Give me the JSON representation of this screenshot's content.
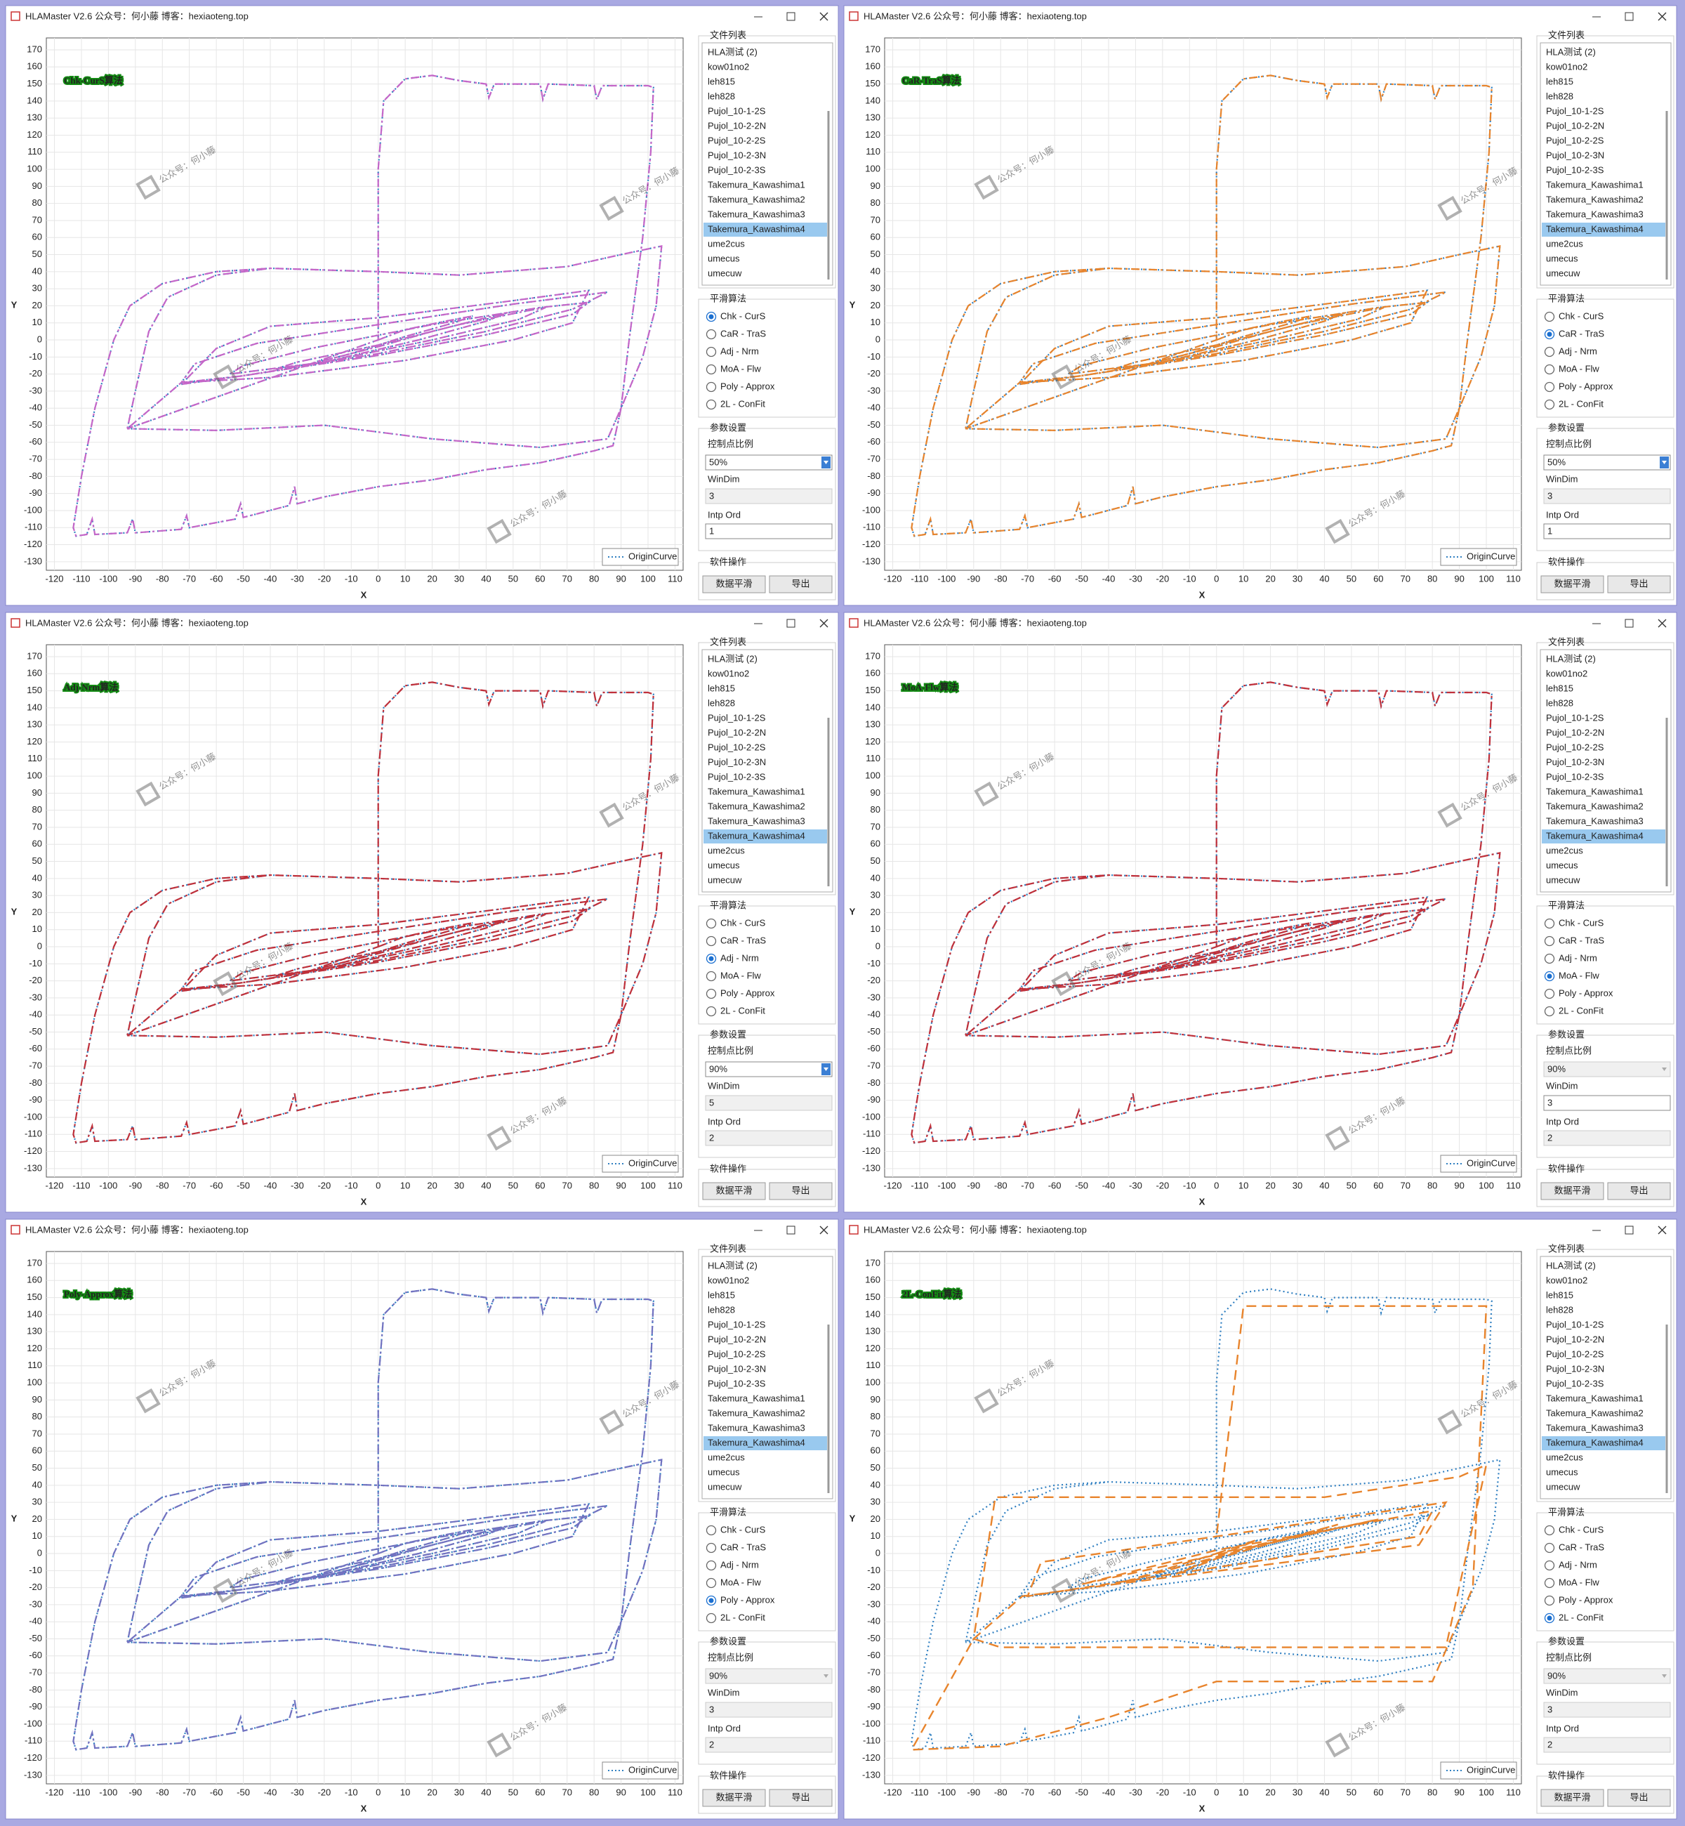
{
  "window_title": "HLAMaster V2.6 公众号：何小藤 博客：hexiaoteng.top",
  "watermark": "公众号：何小藤",
  "axes": {
    "x_label": "X",
    "y_label": "Y",
    "legend": "OriginCurve",
    "xlim": [
      -123,
      113
    ],
    "ylim": [
      -135,
      177
    ],
    "xticks": [
      -120,
      -110,
      -100,
      -90,
      -80,
      -70,
      -60,
      -50,
      -40,
      -30,
      -20,
      -10,
      0,
      10,
      20,
      30,
      40,
      50,
      60,
      70,
      80,
      90,
      100,
      110
    ],
    "yticks": [
      -130,
      -120,
      -110,
      -100,
      -90,
      -80,
      -70,
      -60,
      -50,
      -40,
      -30,
      -20,
      -10,
      0,
      10,
      20,
      30,
      40,
      50,
      60,
      70,
      80,
      90,
      100,
      110,
      120,
      130,
      140,
      150,
      160,
      170
    ],
    "grid": true
  },
  "origin_curve": {
    "color": "#2f7fc1",
    "x": [
      0,
      10,
      25,
      35,
      28,
      10,
      -10,
      -25,
      -15,
      0,
      20,
      40,
      48,
      40,
      15,
      -20,
      -38,
      -30,
      0,
      30,
      55,
      62,
      52,
      20,
      -20,
      -55,
      -50,
      -25,
      20,
      60,
      78,
      72,
      40,
      0,
      -50,
      -73,
      -68,
      -45,
      0,
      50,
      85,
      72,
      40,
      0,
      -50,
      -73,
      -60,
      -40,
      0,
      50,
      78,
      72,
      50,
      10,
      -40,
      -73,
      -93,
      -90,
      -85,
      -78,
      -60,
      -40,
      0,
      30,
      70,
      90,
      105,
      103,
      98,
      90,
      85,
      60,
      20,
      -20,
      -60,
      -93,
      0,
      0,
      2,
      10,
      20,
      30,
      40,
      41,
      43,
      60,
      61,
      63,
      80,
      81,
      83,
      100,
      102,
      101,
      98,
      93,
      90,
      87,
      80,
      60,
      40,
      20,
      0,
      -20,
      -30,
      -31,
      -33,
      -50,
      -51,
      -53,
      -70,
      -71,
      -73,
      -90,
      -91,
      -93,
      -105,
      -106,
      -108,
      -112,
      -113,
      -110,
      -105,
      -98,
      -92,
      -80,
      -60,
      -40
    ],
    "y": [
      0,
      6,
      11,
      14,
      10,
      2,
      -8,
      -14,
      -10,
      -4,
      5,
      13,
      16,
      11,
      0,
      -13,
      -17,
      -13,
      -3,
      9,
      17,
      19,
      12,
      0,
      -13,
      -20,
      -15,
      -5,
      9,
      19,
      22,
      15,
      3,
      -9,
      -21,
      -25,
      -14,
      -2,
      9,
      21,
      28,
      18,
      5,
      -8,
      -21,
      -26,
      -5,
      8,
      13,
      23,
      29,
      10,
      0,
      -12,
      -22,
      -25,
      -52,
      -30,
      5,
      25,
      38,
      42,
      40,
      38,
      43,
      50,
      55,
      20,
      -10,
      -40,
      -58,
      -63,
      -58,
      -50,
      -53,
      -52,
      0,
      100,
      140,
      153,
      155,
      152,
      150,
      142,
      150,
      150,
      141,
      150,
      149,
      141,
      149,
      149,
      148,
      110,
      60,
      0,
      -40,
      -62,
      -65,
      -72,
      -76,
      -82,
      -86,
      -92,
      -96,
      -86,
      -97,
      -104,
      -96,
      -105,
      -110,
      -103,
      -111,
      -113,
      -105,
      -113,
      -114,
      -105,
      -114,
      -115,
      -110,
      -80,
      -40,
      0,
      20,
      33,
      40,
      42
    ]
  },
  "panel": {
    "file_list_label": "文件列表",
    "files": [
      "HLA测试 (2)",
      "kow01no2",
      "leh815",
      "leh828",
      "Pujol_10-1-2S",
      "Pujol_10-2-2N",
      "Pujol_10-2-2S",
      "Pujol_10-2-3N",
      "Pujol_10-2-3S",
      "Takemura_Kawashima1",
      "Takemura_Kawashima2",
      "Takemura_Kawashima3",
      "Takemura_Kawashima4",
      "ume2cus",
      "umecus",
      "umecuw"
    ],
    "selected_file": 12,
    "algo_label": "平滑算法",
    "algorithms": [
      "Chk - CurS",
      "CaR - TraS",
      "Adj - Nrm",
      "MoA - Flw",
      "Poly - Approx",
      "2L - ConFit"
    ],
    "params_label": "参数设置",
    "ratio_label": "控制点比例",
    "windim_label": "WinDim",
    "intp_label": "Intp Ord",
    "ops_label": "软件操作",
    "smooth_button": "数据平滑",
    "export_button": "导出"
  },
  "windows": [
    {
      "overlay": "Chk-CurS算法",
      "algorithm": 0,
      "color": "#c566c8",
      "ratio": "50%",
      "ratio_enabled": true,
      "windim": "3",
      "windim_enabled": false,
      "intp": "1",
      "intp_enabled": true
    },
    {
      "overlay": "CaR-TraS算法",
      "algorithm": 1,
      "color": "#e8842c",
      "ratio": "50%",
      "ratio_enabled": true,
      "windim": "3",
      "windim_enabled": false,
      "intp": "1",
      "intp_enabled": true
    },
    {
      "overlay": "Adj-Nrm算法",
      "algorithm": 2,
      "color": "#c0303a",
      "ratio": "90%",
      "ratio_enabled": true,
      "windim": "5",
      "windim_enabled": false,
      "intp": "2",
      "intp_enabled": false
    },
    {
      "overlay": "MoA-Flw算法",
      "algorithm": 3,
      "color": "#c0303a",
      "ratio": "90%",
      "ratio_enabled": false,
      "windim": "3",
      "windim_enabled": true,
      "intp": "2",
      "intp_enabled": false
    },
    {
      "overlay": "Poly-Approx算法",
      "algorithm": 4,
      "color": "#7272c0",
      "ratio": "90%",
      "ratio_enabled": false,
      "windim": "3",
      "windim_enabled": false,
      "intp": "2",
      "intp_enabled": false
    },
    {
      "overlay": "2L-ConFit算法",
      "algorithm": 5,
      "color": "#e8842c",
      "ratio": "90%",
      "ratio_enabled": false,
      "windim": "3",
      "windim_enabled": false,
      "intp": "2",
      "intp_enabled": false,
      "fit_curve": {
        "x": [
          0,
          15,
          -15,
          0,
          45,
          -35,
          0,
          60,
          -50,
          0,
          80,
          75,
          -70,
          -65,
          0,
          85,
          75,
          -72,
          -90,
          -82,
          40,
          90,
          100,
          85,
          -80,
          -90,
          -113,
          -80,
          -40,
          0,
          80,
          95,
          100,
          10,
          0
        ],
        "y": [
          0,
          8,
          -12,
          -3,
          17,
          -17,
          0,
          20,
          -18,
          2,
          25,
          10,
          -25,
          -5,
          10,
          30,
          5,
          -25,
          -50,
          33,
          33,
          45,
          52,
          -55,
          -55,
          -50,
          -115,
          -113,
          -96,
          -75,
          -75,
          -20,
          145,
          145,
          10
        ]
      }
    }
  ]
}
